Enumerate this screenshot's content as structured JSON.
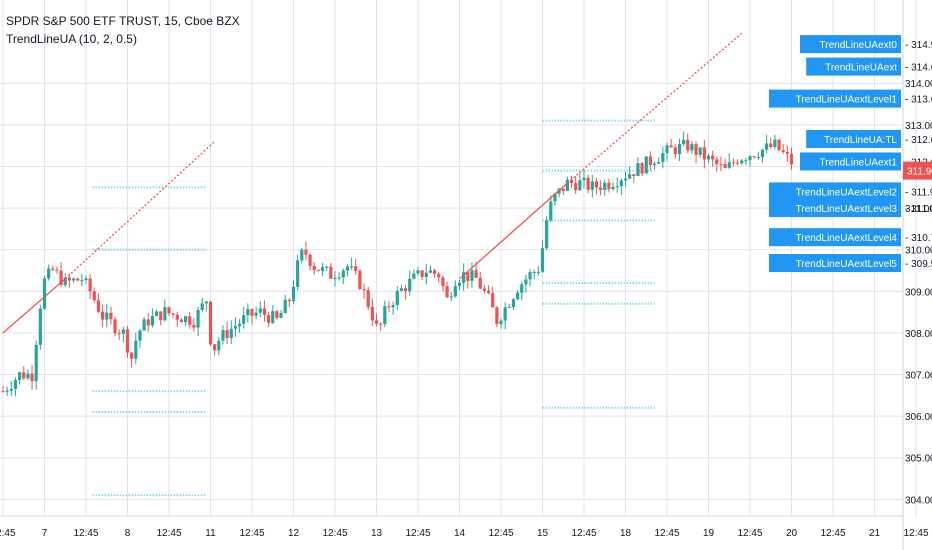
{
  "header": {
    "symbol_line": "SPDR S&P 500 ETF TRUST, 15, Cboe BZX",
    "indicator_line": "TrendLineUA (10, 2, 0.5)"
  },
  "colors": {
    "up": "#26a69a",
    "down": "#ef5350",
    "trend": "#ef5350",
    "level": "#80deea",
    "tag_bg": "#2196f3",
    "price_tag_bg": "#ef5350",
    "grid": "#e0e3eb",
    "axis_text": "#131722"
  },
  "chart_data": {
    "type": "candlestick",
    "title": "",
    "ylim": [
      303.6,
      316.0
    ],
    "y_ticks": [
      "304.00",
      "305.00",
      "306.00",
      "307.00",
      "308.00",
      "309.00",
      "310.00",
      "311.00",
      "312.00",
      "313.00",
      "314.00"
    ],
    "x_ticks": [
      {
        "label": "12:45",
        "pos": 0.0
      },
      {
        "label": "7",
        "pos": 0.5
      },
      {
        "label": "12:45",
        "pos": 1.0
      },
      {
        "label": "8",
        "pos": 1.5
      },
      {
        "label": "12:45",
        "pos": 2.0
      },
      {
        "label": "11",
        "pos": 2.5
      },
      {
        "label": "12:45",
        "pos": 3.0
      },
      {
        "label": "12",
        "pos": 3.5
      },
      {
        "label": "12:45",
        "pos": 4.0
      },
      {
        "label": "13",
        "pos": 4.5
      },
      {
        "label": "12:45",
        "pos": 5.0
      },
      {
        "label": "14",
        "pos": 5.5
      },
      {
        "label": "12:45",
        "pos": 6.0
      },
      {
        "label": "15",
        "pos": 6.5
      },
      {
        "label": "12:45",
        "pos": 7.0
      },
      {
        "label": "18",
        "pos": 7.5
      },
      {
        "label": "12:45",
        "pos": 8.0
      },
      {
        "label": "19",
        "pos": 8.5
      },
      {
        "label": "12:45",
        "pos": 9.0
      },
      {
        "label": "20",
        "pos": 9.5
      },
      {
        "label": "12:45",
        "pos": 10.0
      },
      {
        "label": "21",
        "pos": 10.5
      },
      {
        "label": "12:45",
        "pos": 11.0
      }
    ],
    "current_price": "311.90",
    "price_waypoints": [
      [
        0.0,
        306.6
      ],
      [
        0.1,
        306.8
      ],
      [
        0.2,
        307.0
      ],
      [
        0.35,
        307.0
      ],
      [
        0.48,
        309.2
      ],
      [
        0.6,
        309.5
      ],
      [
        0.75,
        309.2
      ],
      [
        0.95,
        309.3
      ],
      [
        1.05,
        309.0
      ],
      [
        1.2,
        308.4
      ],
      [
        1.45,
        308.0
      ],
      [
        1.55,
        307.4
      ],
      [
        1.62,
        308.0
      ],
      [
        1.75,
        308.3
      ],
      [
        1.95,
        308.5
      ],
      [
        2.3,
        308.3
      ],
      [
        2.45,
        308.8
      ],
      [
        2.52,
        307.5
      ],
      [
        2.58,
        307.8
      ],
      [
        2.75,
        308.1
      ],
      [
        2.95,
        308.4
      ],
      [
        3.1,
        308.5
      ],
      [
        3.3,
        308.3
      ],
      [
        3.45,
        308.8
      ],
      [
        3.55,
        309.6
      ],
      [
        3.62,
        310.0
      ],
      [
        3.75,
        309.6
      ],
      [
        3.95,
        309.4
      ],
      [
        4.15,
        309.6
      ],
      [
        4.3,
        309.2
      ],
      [
        4.42,
        308.6
      ],
      [
        4.52,
        308.0
      ],
      [
        4.62,
        308.6
      ],
      [
        4.78,
        309.0
      ],
      [
        4.95,
        309.3
      ],
      [
        5.1,
        309.5
      ],
      [
        5.25,
        309.4
      ],
      [
        5.35,
        308.8
      ],
      [
        5.45,
        309.3
      ],
      [
        5.55,
        309.4
      ],
      [
        5.7,
        309.3
      ],
      [
        5.85,
        308.8
      ],
      [
        5.95,
        308.3
      ],
      [
        6.05,
        308.6
      ],
      [
        6.2,
        309.1
      ],
      [
        6.35,
        309.4
      ],
      [
        6.48,
        309.6
      ],
      [
        6.52,
        310.5
      ],
      [
        6.62,
        311.2
      ],
      [
        6.8,
        311.6
      ],
      [
        6.95,
        311.6
      ],
      [
        7.1,
        311.5
      ],
      [
        7.3,
        311.6
      ],
      [
        7.5,
        311.8
      ],
      [
        7.7,
        312.0
      ],
      [
        7.85,
        312.2
      ],
      [
        8.05,
        312.4
      ],
      [
        8.25,
        312.5
      ],
      [
        8.4,
        312.3
      ],
      [
        8.55,
        312.1
      ],
      [
        8.7,
        311.9
      ],
      [
        8.85,
        312.2
      ],
      [
        9.0,
        312.3
      ],
      [
        9.15,
        312.4
      ],
      [
        9.3,
        312.5
      ],
      [
        9.4,
        312.3
      ],
      [
        9.5,
        312.1
      ]
    ],
    "trend_lines": [
      {
        "style": "solid",
        "from": [
          0.0,
          308.0
        ],
        "to": [
          0.75,
          309.3
        ]
      },
      {
        "style": "dotted",
        "from": [
          0.75,
          309.3
        ],
        "to": [
          2.55,
          312.6
        ]
      },
      {
        "style": "solid",
        "from": [
          5.5,
          309.3
        ],
        "to": [
          6.8,
          311.6
        ]
      },
      {
        "style": "dotted",
        "from": [
          6.8,
          311.6
        ],
        "to": [
          8.9,
          315.2
        ]
      }
    ],
    "level_lines": [
      {
        "from": 1.08,
        "to": 2.45,
        "y": 311.5
      },
      {
        "from": 1.08,
        "to": 2.45,
        "y": 310.0
      },
      {
        "from": 1.08,
        "to": 2.45,
        "y": 306.6
      },
      {
        "from": 1.08,
        "to": 2.45,
        "y": 306.1
      },
      {
        "from": 1.08,
        "to": 2.45,
        "y": 304.1
      },
      {
        "from": 6.5,
        "to": 7.85,
        "y": 313.1
      },
      {
        "from": 6.5,
        "to": 7.85,
        "y": 311.9
      },
      {
        "from": 6.5,
        "to": 7.85,
        "y": 310.7
      },
      {
        "from": 6.5,
        "to": 7.85,
        "y": 309.2
      },
      {
        "from": 6.5,
        "to": 7.85,
        "y": 308.7
      },
      {
        "from": 6.5,
        "to": 7.85,
        "y": 306.2
      }
    ],
    "tags": [
      {
        "label": "TrendLineUAext0",
        "value": "314.94",
        "y": 314.94
      },
      {
        "label": "TrendLineUAext",
        "value": "314.67",
        "y": 314.4
      },
      {
        "label": "TrendLineUAextLevel1",
        "value": "313.63",
        "y": 313.63
      },
      {
        "label": "TrendLineUA:TL",
        "value": "312.66",
        "y": 312.66
      },
      {
        "label": "TrendLineUAext1",
        "value": "312.66",
        "y": 312.12
      },
      {
        "label": "TrendLineUAextLevel2",
        "value": "311.92",
        "y": 311.4
      },
      {
        "label": "TrendLineUAextLevel3",
        "value": "311.00",
        "y": 311.0
      },
      {
        "label": "TrendLineUAextLevel4",
        "value": "310.72",
        "y": 310.3
      },
      {
        "label": "TrendLineUAextLevel5",
        "value": "309.52",
        "y": 309.68
      }
    ]
  }
}
